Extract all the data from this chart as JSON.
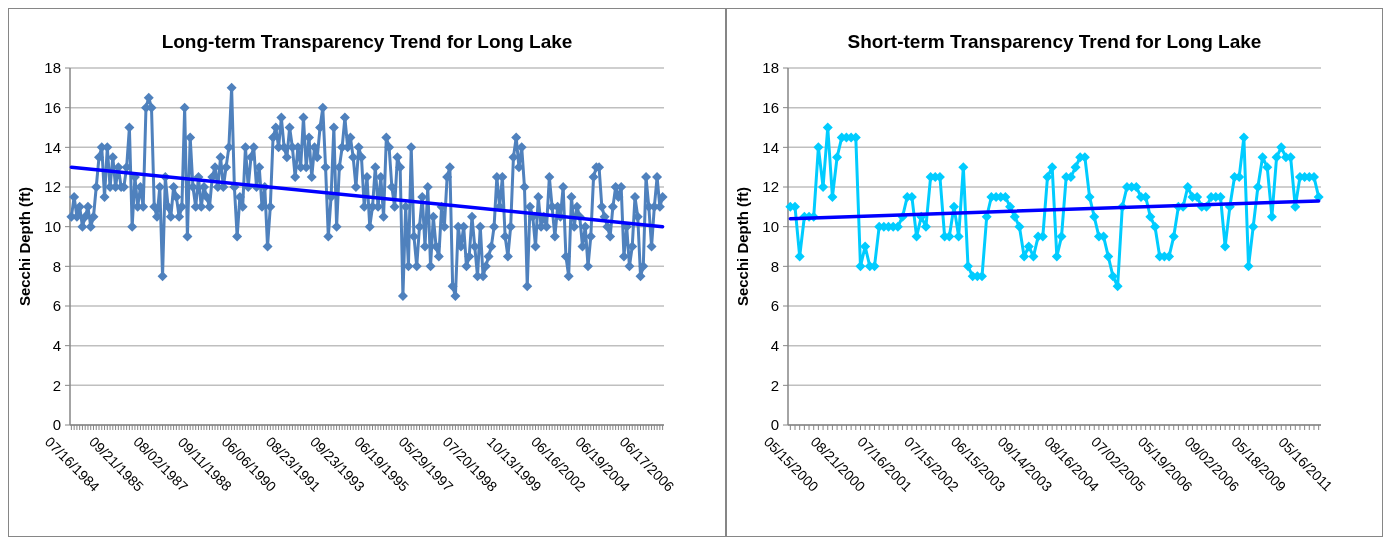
{
  "chart_data": [
    {
      "type": "line",
      "title": "Long-term Transparency Trend for Long Lake",
      "ylabel": "Secchi Depth (ft)",
      "ylim": [
        0,
        18
      ],
      "yticks": [
        0,
        2,
        4,
        6,
        8,
        10,
        12,
        14,
        16,
        18
      ],
      "grid": "y",
      "marker": "diamond",
      "categories": [
        "07/16/1984",
        null,
        null,
        null,
        null,
        null,
        null,
        null,
        null,
        null,
        null,
        null,
        null,
        null,
        null,
        null,
        "09/21/1985",
        null,
        null,
        null,
        null,
        null,
        null,
        null,
        null,
        null,
        null,
        null,
        null,
        null,
        null,
        null,
        "08/02/1987",
        null,
        null,
        null,
        null,
        null,
        null,
        null,
        null,
        null,
        null,
        null,
        null,
        null,
        null,
        null,
        "09/11/1988",
        null,
        null,
        null,
        null,
        null,
        null,
        null,
        null,
        null,
        null,
        null,
        null,
        null,
        null,
        null,
        "06/06/1990",
        null,
        null,
        null,
        null,
        null,
        null,
        null,
        null,
        null,
        null,
        null,
        null,
        null,
        null,
        null,
        "08/23/1991",
        null,
        null,
        null,
        null,
        null,
        null,
        null,
        null,
        null,
        null,
        null,
        null,
        null,
        null,
        null,
        "09/23/1993",
        null,
        null,
        null,
        null,
        null,
        null,
        null,
        null,
        null,
        null,
        null,
        null,
        null,
        null,
        null,
        "06/19/1995",
        null,
        null,
        null,
        null,
        null,
        null,
        null,
        null,
        null,
        null,
        null,
        null,
        null,
        null,
        null,
        "05/29/1997",
        null,
        null,
        null,
        null,
        null,
        null,
        null,
        null,
        null,
        null,
        null,
        null,
        null,
        null,
        null,
        "07/20/1998",
        null,
        null,
        null,
        null,
        null,
        null,
        null,
        null,
        null,
        null,
        null,
        null,
        null,
        null,
        null,
        "10/13/1999",
        null,
        null,
        null,
        null,
        null,
        null,
        null,
        null,
        null,
        null,
        null,
        null,
        null,
        null,
        null,
        "06/16/2002",
        null,
        null,
        null,
        null,
        null,
        null,
        null,
        null,
        null,
        null,
        null,
        null,
        null,
        null,
        null,
        "06/19/2004",
        null,
        null,
        null,
        null,
        null,
        null,
        null,
        null,
        null,
        null,
        null,
        null,
        null,
        null,
        null,
        "06/17/2006",
        null,
        null,
        null,
        null,
        null,
        null
      ],
      "series": [
        {
          "color": "#4f81bd",
          "values": [
            10.5,
            11.5,
            10.5,
            11,
            10,
            10.5,
            11,
            10,
            10.5,
            12,
            13.5,
            14,
            11.5,
            14,
            12,
            13.5,
            12,
            13,
            12,
            12,
            13,
            15,
            10,
            12.5,
            11,
            12,
            11,
            16,
            16.5,
            16,
            11,
            10.5,
            12,
            7.5,
            12.5,
            11,
            10.5,
            12,
            11.5,
            10.5,
            11,
            16,
            9.5,
            14.5,
            12,
            11,
            12.5,
            11,
            12,
            11.5,
            11,
            12.5,
            13,
            12,
            13.5,
            12,
            13,
            14,
            17,
            12,
            9.5,
            11.5,
            11,
            14,
            12,
            13.5,
            14,
            12,
            13,
            11,
            12,
            9,
            11,
            14.5,
            15,
            14,
            15.5,
            14,
            13.5,
            15,
            14,
            12.5,
            14,
            13,
            15.5,
            13,
            14.5,
            12.5,
            14,
            13.5,
            15,
            16,
            13,
            9.5,
            11.5,
            15,
            10,
            13,
            14,
            15.5,
            14,
            14.5,
            13.5,
            12,
            14,
            13.5,
            11,
            12.5,
            10,
            11,
            13,
            11,
            12.5,
            10.5,
            14.5,
            14,
            12,
            11,
            13.5,
            13,
            6.5,
            11,
            8,
            14,
            9.5,
            8,
            10,
            11.5,
            9,
            12,
            8,
            10.5,
            9,
            8.5,
            11,
            10,
            12.5,
            13,
            7,
            6.5,
            10,
            9,
            10,
            8,
            8.5,
            10.5,
            9,
            7.5,
            10,
            7.5,
            8,
            8.5,
            9,
            10,
            12.5,
            11,
            12.5,
            9.5,
            8.5,
            10,
            13.5,
            14.5,
            13,
            14,
            12,
            7,
            11,
            10.5,
            9,
            11.5,
            10,
            10.5,
            10,
            12.5,
            11,
            9.5,
            11,
            10.5,
            12,
            8.5,
            7.5,
            11.5,
            10,
            11,
            10.5,
            9,
            10,
            8,
            9.5,
            12.5,
            13,
            13,
            11,
            10.5,
            10,
            9.5,
            11,
            12,
            11.5,
            12,
            8.5,
            10,
            8,
            9,
            11.5,
            10.5,
            7.5,
            8,
            12.5,
            11,
            9,
            11,
            12.5,
            11,
            11.5
          ]
        },
        {
          "type": "line",
          "color": "#0000ff",
          "marker": "none",
          "values": [
            13.0,
            null,
            null,
            null,
            null,
            null,
            null,
            null,
            null,
            null,
            null,
            null,
            null,
            null,
            null,
            null,
            null,
            null,
            null,
            null,
            null,
            null,
            null,
            null,
            null,
            null,
            null,
            null,
            null,
            null,
            null,
            null,
            null,
            null,
            null,
            null,
            null,
            null,
            null,
            null,
            null,
            null,
            null,
            null,
            null,
            null,
            null,
            null,
            null,
            null,
            null,
            null,
            null,
            null,
            null,
            null,
            null,
            null,
            null,
            null,
            null,
            null,
            null,
            null,
            null,
            null,
            null,
            null,
            null,
            null,
            null,
            null,
            null,
            null,
            null,
            null,
            null,
            null,
            null,
            null,
            null,
            null,
            null,
            null,
            null,
            null,
            null,
            null,
            null,
            null,
            null,
            null,
            null,
            null,
            null,
            null,
            null,
            null,
            null,
            null,
            null,
            null,
            null,
            null,
            null,
            null,
            null,
            null,
            null,
            null,
            null,
            null,
            null,
            null,
            null,
            null,
            null,
            null,
            null,
            null,
            null,
            null,
            null,
            null,
            null,
            null,
            null,
            null,
            null,
            null,
            null,
            null,
            null,
            null,
            null,
            null,
            null,
            null,
            null,
            null,
            null,
            null,
            null,
            null,
            null,
            null,
            null,
            null,
            null,
            null,
            null,
            null,
            null,
            null,
            null,
            null,
            null,
            null,
            null,
            null,
            null,
            null,
            null,
            null,
            null,
            null,
            null,
            null,
            null,
            null,
            null,
            null,
            null,
            null,
            null,
            null,
            null,
            null,
            null,
            null,
            null,
            null,
            null,
            null,
            null,
            null,
            null,
            null,
            null,
            null,
            null,
            null,
            null,
            null,
            null,
            null,
            null,
            null,
            null,
            null,
            null,
            null,
            null,
            null,
            null,
            null,
            null,
            null,
            null,
            null,
            null,
            null,
            null,
            null,
            10.0
          ]
        }
      ]
    },
    {
      "type": "line",
      "title": "Short-term Transparency Trend for Long Lake",
      "ylabel": "Secchi Depth (ft)",
      "ylim": [
        0,
        18
      ],
      "yticks": [
        0,
        2,
        4,
        6,
        8,
        10,
        12,
        14,
        16,
        18
      ],
      "grid": "y",
      "marker": "diamond",
      "categories": [
        "05/15/2000",
        null,
        null,
        null,
        null,
        null,
        null,
        null,
        null,
        null,
        "08/21/2000",
        null,
        null,
        null,
        null,
        null,
        null,
        null,
        null,
        null,
        "07/16/2001",
        null,
        null,
        null,
        null,
        null,
        null,
        null,
        null,
        null,
        "07/15/2002",
        null,
        null,
        null,
        null,
        null,
        null,
        null,
        null,
        null,
        "06/15/2003",
        null,
        null,
        null,
        null,
        null,
        null,
        null,
        null,
        null,
        "09/14/2003",
        null,
        null,
        null,
        null,
        null,
        null,
        null,
        null,
        null,
        "08/16/2004",
        null,
        null,
        null,
        null,
        null,
        null,
        null,
        null,
        null,
        "07/02/2005",
        null,
        null,
        null,
        null,
        null,
        null,
        null,
        null,
        null,
        "05/19/2006",
        null,
        null,
        null,
        null,
        null,
        null,
        null,
        null,
        null,
        "09/02/2006",
        null,
        null,
        null,
        null,
        null,
        null,
        null,
        null,
        null,
        "05/18/2009",
        null,
        null,
        null,
        null,
        null,
        null,
        null,
        null,
        null,
        "05/16/2011",
        null,
        null,
        null
      ],
      "series": [
        {
          "color": "#00ccff",
          "values": [
            11,
            11,
            8.5,
            10.5,
            10.5,
            10.5,
            14,
            12,
            15,
            11.5,
            13.5,
            14.5,
            14.5,
            14.5,
            14.5,
            8,
            9,
            8,
            8,
            10,
            10,
            10,
            10,
            10,
            10.5,
            11.5,
            11.5,
            9.5,
            10.5,
            10,
            12.5,
            12.5,
            12.5,
            9.5,
            9.5,
            11,
            9.5,
            13,
            8,
            7.5,
            7.5,
            7.5,
            10.5,
            11.5,
            11.5,
            11.5,
            11.5,
            11,
            10.5,
            10,
            8.5,
            9,
            8.5,
            9.5,
            9.5,
            12.5,
            13,
            8.5,
            9.5,
            12.5,
            12.5,
            13,
            13.5,
            13.5,
            11.5,
            10.5,
            9.5,
            9.5,
            8.5,
            7.5,
            7,
            11,
            12,
            12,
            12,
            11.5,
            11.5,
            10.5,
            10,
            8.5,
            8.5,
            8.5,
            9.5,
            11,
            11,
            12,
            11.5,
            11.5,
            11,
            11,
            11.5,
            11.5,
            11.5,
            9,
            11,
            12.5,
            12.5,
            14.5,
            8,
            10,
            12,
            13.5,
            13,
            10.5,
            13.5,
            14,
            13.5,
            13.5,
            11,
            12.5,
            12.5,
            12.5,
            12.5,
            11.5
          ]
        },
        {
          "type": "line",
          "color": "#0000ff",
          "marker": "none",
          "values": [
            10.4,
            null,
            null,
            null,
            null,
            null,
            null,
            null,
            null,
            null,
            null,
            null,
            null,
            null,
            null,
            null,
            null,
            null,
            null,
            null,
            null,
            null,
            null,
            null,
            null,
            null,
            null,
            null,
            null,
            null,
            null,
            null,
            null,
            null,
            null,
            null,
            null,
            null,
            null,
            null,
            null,
            null,
            null,
            null,
            null,
            null,
            null,
            null,
            null,
            null,
            null,
            null,
            null,
            null,
            null,
            null,
            null,
            null,
            null,
            null,
            null,
            null,
            null,
            null,
            null,
            null,
            null,
            null,
            null,
            null,
            null,
            null,
            null,
            null,
            null,
            null,
            null,
            null,
            null,
            null,
            null,
            null,
            null,
            null,
            null,
            null,
            null,
            null,
            null,
            null,
            null,
            null,
            null,
            null,
            null,
            null,
            null,
            null,
            null,
            null,
            null,
            null,
            null,
            null,
            null,
            null,
            null,
            null,
            null,
            null,
            null,
            null,
            null,
            11.3
          ]
        }
      ]
    }
  ]
}
